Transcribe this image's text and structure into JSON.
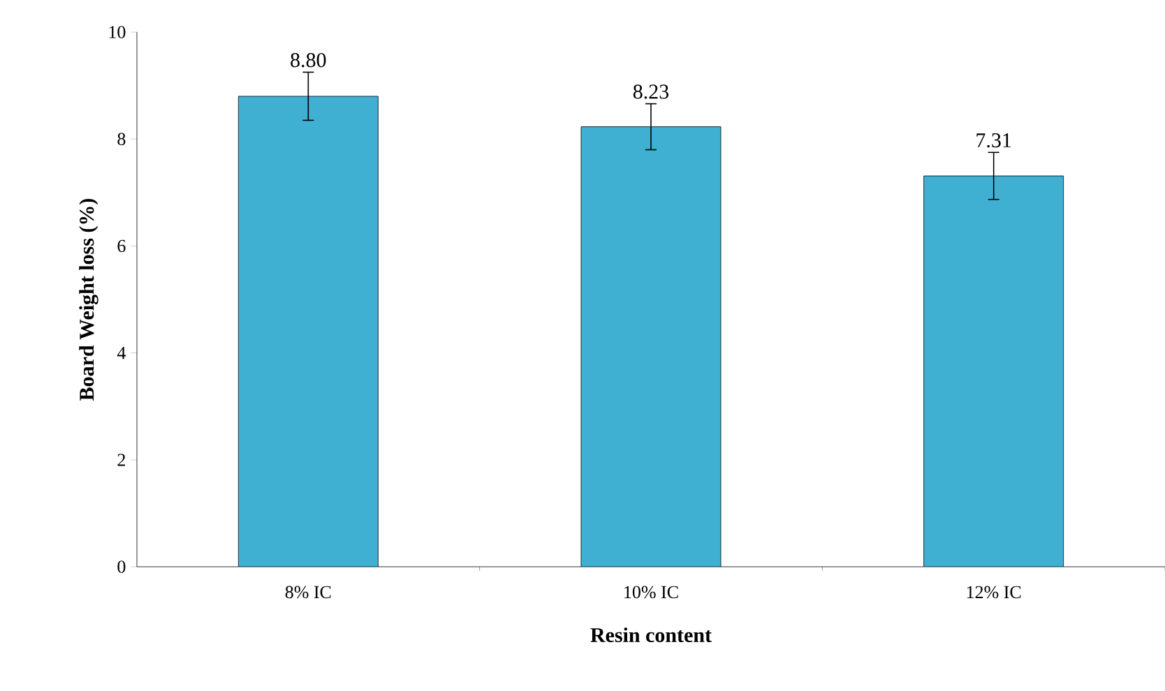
{
  "chart_data": {
    "type": "bar",
    "xlabel": "Resin content",
    "ylabel": "Board Weight loss (%)",
    "categories": [
      "8% IC",
      "10% IC",
      "12% IC"
    ],
    "values": [
      8.8,
      8.23,
      7.31
    ],
    "errors": [
      0.45,
      0.43,
      0.44
    ],
    "value_labels": [
      "8.80",
      "8.23",
      "7.31"
    ],
    "color": "#3fb0d2",
    "ylim": [
      0,
      10
    ],
    "yticks": [
      0,
      2,
      4,
      6,
      8,
      10
    ],
    "grid": false
  }
}
